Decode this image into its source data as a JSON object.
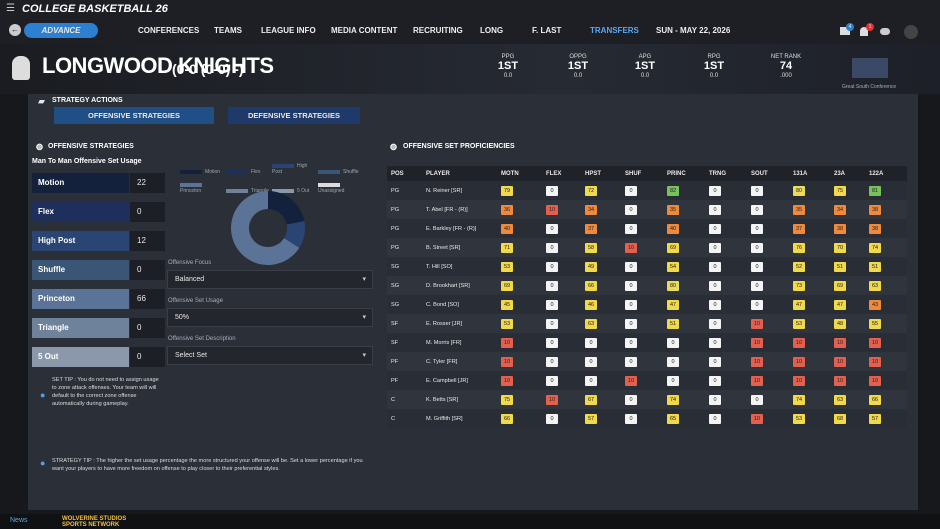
{
  "nav": {
    "logo": "COLLEGE BASKETBALL 26",
    "advance": "ADVANCE",
    "menu": [
      "CONFERENCES",
      "TEAMS",
      "LEAGUE INFO",
      "MEDIA CONTENT",
      "RECRUITING"
    ],
    "coach": "LONG",
    "user": "F. LAST",
    "transfers": "TRANSFERS",
    "date": "SUN - MAY 22, 2026",
    "badges": [
      "4",
      "1"
    ]
  },
  "team": {
    "name": "LONGWOOD KNIGHTS",
    "record": "(0-0 (0-0)  -)",
    "stats": [
      {
        "label": "PPG",
        "rank": "1ST",
        "value": "0.0"
      },
      {
        "label": "OPPG",
        "rank": "1ST",
        "value": "0.0"
      },
      {
        "label": "APG",
        "rank": "1ST",
        "value": "0.0"
      },
      {
        "label": "RPG",
        "rank": "1ST",
        "value": "0.0"
      },
      {
        "label": "NET RANK",
        "rank": 74,
        "value": ".000"
      }
    ],
    "conference": "Great South Conference"
  },
  "actions": {
    "title": "STRATEGY ACTIONS",
    "buttons": [
      "OFFENSIVE STRATEGIES",
      "DEFENSIVE STRATEGIES"
    ]
  },
  "strategies": {
    "title": "OFFENSIVE STRATEGIES",
    "subtitle": "Man To Man Offensive Set Usage",
    "sets": [
      {
        "name": "Motion",
        "value": 22,
        "color": "#14213d"
      },
      {
        "name": "Flex",
        "value": 0,
        "color": "#1e2f5c"
      },
      {
        "name": "High Post",
        "value": 12,
        "color": "#2a4573"
      },
      {
        "name": "Shuffle",
        "value": 0,
        "color": "#3a5575"
      },
      {
        "name": "Princeton",
        "value": 66,
        "color": "#5a7396"
      },
      {
        "name": "Triangle",
        "value": 0,
        "color": "#6f829c"
      },
      {
        "name": "5 Out",
        "value": 0,
        "color": "#8b97aa"
      }
    ],
    "unassigned": {
      "name": "Unassigned",
      "color": "#dcdcdc"
    },
    "fields": [
      {
        "label": "Offensive Focus",
        "value": "Balanced"
      },
      {
        "label": "Offensive Set Usage",
        "value": "50%"
      },
      {
        "label": "Offensive Set Description",
        "value": "Select Set"
      }
    ],
    "set_tip": "SET TIP : You do not need to assign usage to zone attack offenses. Your team will will default to the correct zone offense automatically during gameplay.",
    "strategy_tip": "STRATEGY TIP : The higher the set usage percentage the more structured your offense will be. Set a lower percentage if you want your players to have more freedom on offense to play closer to their preferential styles."
  },
  "proficiencies": {
    "title": "OFFENSIVE SET PROFICIENCIES",
    "columns": [
      "POS",
      "PLAYER",
      "MOTN",
      "FLEX",
      "HPST",
      "SHUF",
      "PRINC",
      "TRNG",
      "SOUT",
      "131A",
      "23A",
      "122A"
    ],
    "rows": [
      [
        "PG",
        "N. Reiner [SR]",
        79,
        0,
        72,
        0,
        82,
        0,
        0,
        80,
        75,
        81
      ],
      [
        "PG",
        "T. Abel [FR - (R)]",
        36,
        10,
        34,
        0,
        35,
        0,
        0,
        35,
        34,
        38
      ],
      [
        "PG",
        "E. Barkley [FR - (R)]",
        40,
        0,
        37,
        0,
        40,
        0,
        0,
        37,
        38,
        38
      ],
      [
        "PG",
        "B. Street [SR]",
        71,
        0,
        58,
        10,
        69,
        0,
        0,
        76,
        70,
        74
      ],
      [
        "SG",
        "T. Hill [SO]",
        53,
        0,
        49,
        0,
        54,
        0,
        0,
        52,
        51,
        51
      ],
      [
        "SG",
        "D. Brookhart [SR]",
        69,
        0,
        66,
        0,
        80,
        0,
        0,
        73,
        69,
        63
      ],
      [
        "SG",
        "C. Bond [SO]",
        45,
        0,
        46,
        0,
        47,
        0,
        0,
        47,
        47,
        43
      ],
      [
        "SF",
        "E. Rosser [JR]",
        53,
        0,
        63,
        0,
        51,
        0,
        10,
        53,
        48,
        55
      ],
      [
        "SF",
        "M. Morris [FR]",
        10,
        0,
        0,
        0,
        0,
        0,
        10,
        10,
        10,
        10
      ],
      [
        "PF",
        "C. Tyler [FR]",
        10,
        0,
        0,
        0,
        0,
        0,
        10,
        10,
        10,
        10
      ],
      [
        "PF",
        "E. Campbell [JR]",
        10,
        0,
        0,
        10,
        0,
        0,
        10,
        10,
        10,
        10
      ],
      [
        "C",
        "K. Betts [SR]",
        75,
        10,
        67,
        0,
        74,
        0,
        0,
        74,
        63,
        66
      ],
      [
        "C",
        "M. Griffith [SR]",
        66,
        0,
        57,
        0,
        65,
        0,
        10,
        53,
        68,
        57
      ]
    ]
  },
  "footer": {
    "news": "News",
    "brand": "WOLVERINE STUDIOS SPORTS NETWORK"
  }
}
